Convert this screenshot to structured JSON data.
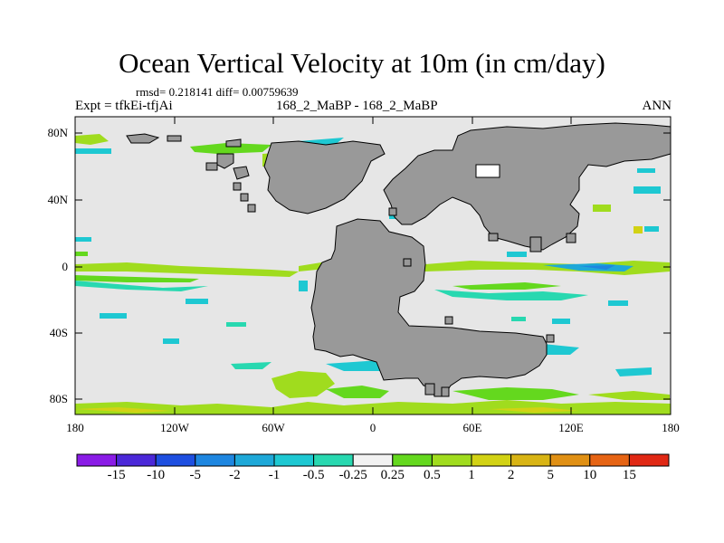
{
  "figure": {
    "title": "Ocean Vertical Velocity at 10m (in cm/day)",
    "stats": "rmsd= 0.218141 diff= 0.00759639",
    "experiment": "Expt = tfkEi-tfjAi",
    "case": "168_2_MaBP - 168_2_MaBP",
    "season": "ANN"
  },
  "axes": {
    "lat_labels": [
      "80N",
      "40N",
      "0",
      "40S",
      "80S"
    ],
    "lon_labels": [
      "180",
      "120W",
      "60W",
      "0",
      "60E",
      "120E",
      "180"
    ]
  },
  "colors": {
    "ocean_background": "#e6e6e6",
    "land": "#999999",
    "colorbar": [
      "#8a1ce6",
      "#4b28d8",
      "#1e4fe0",
      "#1e86e0",
      "#1ea8d8",
      "#1ec8d2",
      "#28d8b0",
      "#f2f2f2",
      "#64d81e",
      "#a0dc1e",
      "#d2d214",
      "#d8b414",
      "#e09014",
      "#e66414",
      "#e02814"
    ]
  },
  "colorbar_labels": [
    "-15",
    "-10",
    "-5",
    "-2",
    "-1",
    "-0.5",
    "-0.25",
    "0.25",
    "0.5",
    "1",
    "2",
    "5",
    "10",
    "15"
  ],
  "chart_data": {
    "type": "heatmap",
    "title": "Ocean Vertical Velocity at 10m (in cm/day)",
    "xlim": [
      -180,
      180
    ],
    "ylim": [
      -90,
      90
    ],
    "x_ticks": [
      "180",
      "120W",
      "60W",
      "0",
      "60E",
      "120E",
      "180"
    ],
    "y_ticks": [
      "80N",
      "40N",
      "0",
      "40S",
      "80S"
    ],
    "levels": [
      -15,
      -10,
      -5,
      -2,
      -1,
      -0.5,
      -0.25,
      0.25,
      0.5,
      1,
      2,
      5,
      10,
      15
    ],
    "units": "cm/day"
  }
}
